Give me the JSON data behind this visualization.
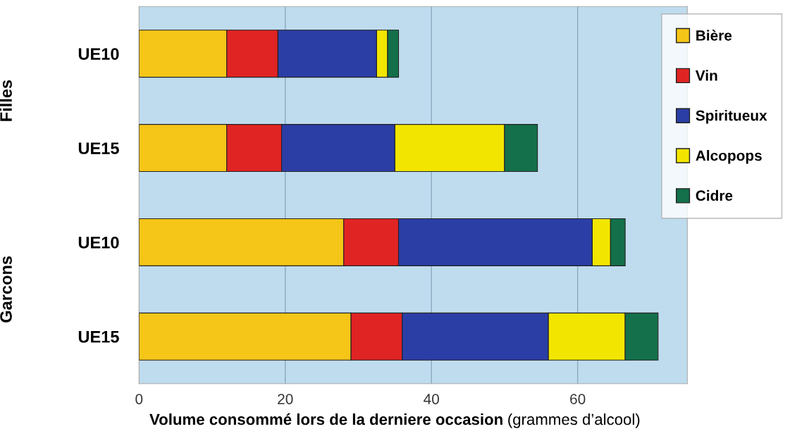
{
  "chart_data": {
    "type": "bar",
    "orientation": "horizontal",
    "stacked": true,
    "categories": [
      "UE10",
      "UE15",
      "UE10",
      "UE15"
    ],
    "series": [
      {
        "name": "Bière",
        "color": "#f5c518",
        "values": [
          12,
          12,
          28,
          29
        ]
      },
      {
        "name": "Vin",
        "color": "#e02424",
        "values": [
          7,
          7.5,
          7.5,
          7
        ]
      },
      {
        "name": "Spiritueux",
        "color": "#2b3ea6",
        "values": [
          13.5,
          15.5,
          26.5,
          20
        ]
      },
      {
        "name": "Alcopops",
        "color": "#f2e600",
        "values": [
          1.5,
          15,
          2.5,
          10.5
        ]
      },
      {
        "name": "Cidre",
        "color": "#13704a",
        "values": [
          1.5,
          4.5,
          2,
          4.5
        ]
      }
    ],
    "xlim": [
      0,
      75
    ],
    "xticks": [
      0,
      20,
      40,
      60
    ],
    "grid": "x",
    "legend": "top right",
    "xlabel": "Volume consommé lors de la derniere occasion",
    "annotations": [
      "Filles",
      "Garcons",
      "(grammes d’alcool)"
    ]
  }
}
